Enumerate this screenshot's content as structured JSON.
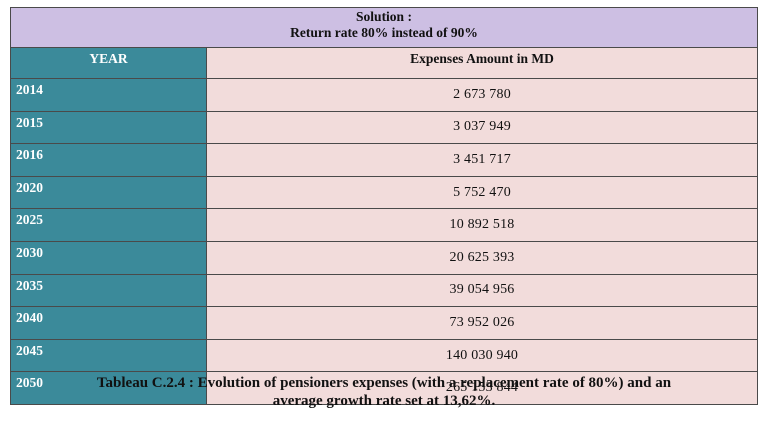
{
  "header": {
    "line1": "Solution :",
    "line2": "Return rate 80% instead of 90%"
  },
  "columns": {
    "year": "YEAR",
    "amount": "Expenses Amount in MD"
  },
  "rows": [
    {
      "year": "2014",
      "amount": "2 673 780"
    },
    {
      "year": "2015",
      "amount": "3 037 949"
    },
    {
      "year": "2016",
      "amount": "3 451 717"
    },
    {
      "year": "2020",
      "amount": "5 752 470"
    },
    {
      "year": "2025",
      "amount": "10 892 518"
    },
    {
      "year": "2030",
      "amount": "20 625 393"
    },
    {
      "year": "2035",
      "amount": "39 054 956"
    },
    {
      "year": "2040",
      "amount": "73 952 026"
    },
    {
      "year": "2045",
      "amount": "140 030 940"
    },
    {
      "year": "2050",
      "amount": "265 153 844"
    }
  ],
  "caption": {
    "line1": "Tableau C.2.4 : Evolution of pensioners expenses (with a replacement rate of 80%) and an",
    "line2": "average growth rate set at 13,62%."
  }
}
